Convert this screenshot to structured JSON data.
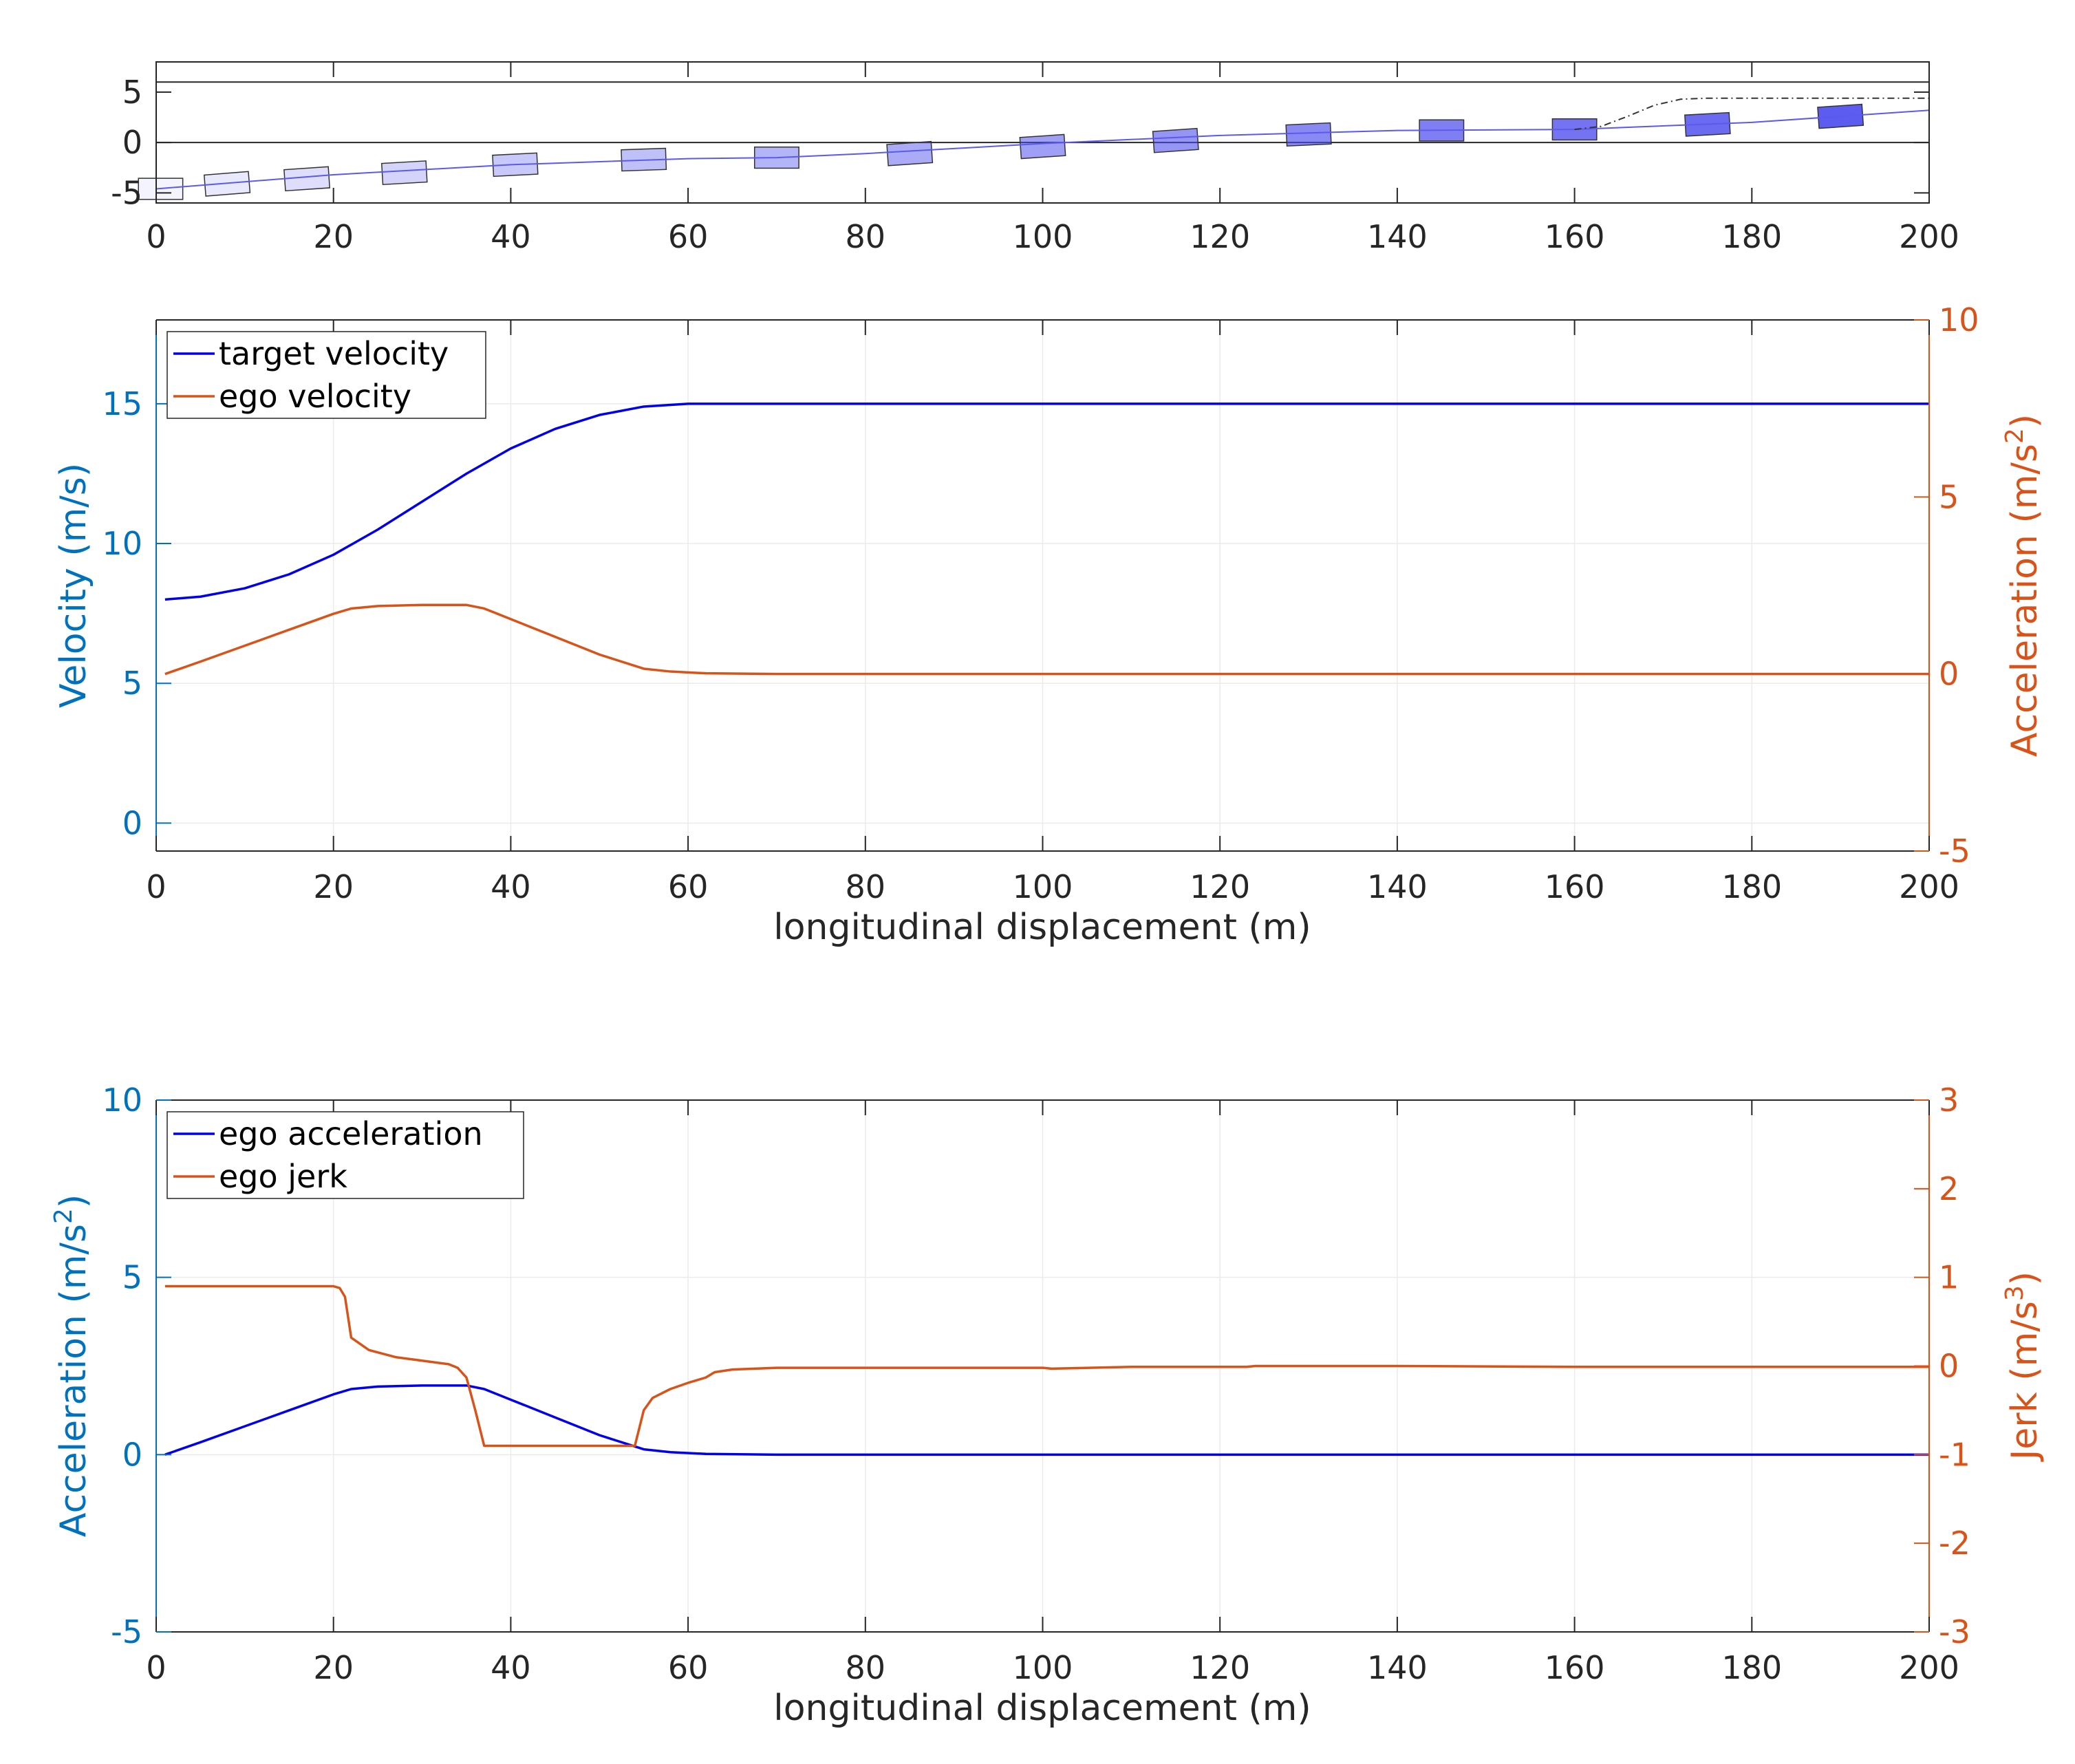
{
  "colors": {
    "blue_line": "#0000ee",
    "orange_line": "#d95319",
    "left_axis": "#0072bd",
    "right_axis": "#d95319",
    "axis_dark": "#262626",
    "grid": "#ebebeb",
    "vehicle_edge": "#333333",
    "vehicle_fill": "#4a4aee",
    "path_line": "#5a5aee"
  },
  "chart_data": [
    {
      "id": "trajectory",
      "type": "line",
      "title": "",
      "xlabel": "",
      "ylabel": "",
      "xlim": [
        0,
        200
      ],
      "ylim": [
        -6,
        8
      ],
      "xticks": [
        0,
        20,
        40,
        60,
        80,
        100,
        120,
        140,
        160,
        180,
        200
      ],
      "yticks": [
        -5,
        0,
        5
      ],
      "ytick_labels": [
        "-5",
        "0",
        "5"
      ],
      "lane_lines": [
        -6,
        0,
        6
      ],
      "path": {
        "x": [
          0,
          20,
          40,
          60,
          70,
          80,
          100,
          120,
          140,
          160,
          180,
          200
        ],
        "y": [
          -4.6,
          -3.2,
          -2.2,
          -1.6,
          -1.5,
          -1.1,
          -0.1,
          0.7,
          1.2,
          1.3,
          2.0,
          3.2
        ]
      },
      "branch_path": {
        "x": [
          160,
          163,
          166,
          169,
          172,
          175,
          200
        ],
        "y": [
          1.3,
          1.6,
          2.6,
          3.7,
          4.3,
          4.4,
          4.4
        ]
      },
      "vehicles": [
        {
          "x": 0.5,
          "y": -4.6,
          "heading": 0.0,
          "fill": 0.0
        },
        {
          "x": 8,
          "y": -4.1,
          "heading": 0.07,
          "fill": 0.07
        },
        {
          "x": 17,
          "y": -3.6,
          "heading": 0.06,
          "fill": 0.14
        },
        {
          "x": 28,
          "y": -3.0,
          "heading": 0.05,
          "fill": 0.21
        },
        {
          "x": 40.5,
          "y": -2.2,
          "heading": 0.045,
          "fill": 0.28
        },
        {
          "x": 55,
          "y": -1.7,
          "heading": 0.03,
          "fill": 0.35
        },
        {
          "x": 70,
          "y": -1.5,
          "heading": 0.0,
          "fill": 0.42
        },
        {
          "x": 85,
          "y": -1.1,
          "heading": 0.06,
          "fill": 0.49
        },
        {
          "x": 100,
          "y": -0.4,
          "heading": 0.06,
          "fill": 0.56
        },
        {
          "x": 115,
          "y": 0.2,
          "heading": 0.06,
          "fill": 0.63
        },
        {
          "x": 130,
          "y": 0.8,
          "heading": 0.04,
          "fill": 0.7
        },
        {
          "x": 145,
          "y": 1.2,
          "heading": 0.0,
          "fill": 0.77
        },
        {
          "x": 160,
          "y": 1.3,
          "heading": 0.0,
          "fill": 0.84
        },
        {
          "x": 175,
          "y": 1.8,
          "heading": 0.05,
          "fill": 0.91
        },
        {
          "x": 190,
          "y": 2.6,
          "heading": 0.06,
          "fill": 1.0
        }
      ]
    },
    {
      "id": "velocity",
      "type": "line",
      "title": "",
      "xlabel": "longitudinal displacement (m)",
      "ylabel_left": "Velocity (m/s)",
      "ylabel_right": "Acceleration (m/s",
      "ylabel_right_sup": "2",
      "ylabel_right_end": ")",
      "xlim": [
        0,
        200
      ],
      "ylim": [
        -1,
        18
      ],
      "ylim_right": [
        -5,
        10
      ],
      "xticks": [
        0,
        20,
        40,
        60,
        80,
        100,
        120,
        140,
        160,
        180,
        200
      ],
      "yticks": [
        0,
        5,
        10,
        15
      ],
      "yticks_right": [
        -5,
        0,
        5,
        10
      ],
      "legend_position": "top-left",
      "series": [
        {
          "name": "target velocity",
          "axis": "left",
          "color": "blue",
          "x": [
            1,
            5,
            10,
            15,
            20,
            25,
            30,
            35,
            40,
            45,
            50,
            55,
            60,
            70,
            100,
            200
          ],
          "y": [
            8.0,
            8.1,
            8.4,
            8.9,
            9.6,
            10.5,
            11.5,
            12.5,
            13.4,
            14.1,
            14.6,
            14.9,
            15.0,
            15.0,
            15.0,
            15.0
          ]
        },
        {
          "name": "ego velocity",
          "axis": "right",
          "color": "orange",
          "x": [
            1,
            5,
            10,
            15,
            20,
            22,
            25,
            30,
            35,
            37,
            40,
            45,
            50,
            55,
            58,
            62,
            70,
            100,
            200
          ],
          "y": [
            0.0,
            0.35,
            0.8,
            1.25,
            1.7,
            1.85,
            1.92,
            1.95,
            1.95,
            1.85,
            1.55,
            1.05,
            0.55,
            0.15,
            0.07,
            0.02,
            0.0,
            0.0,
            0.0
          ]
        }
      ]
    },
    {
      "id": "acceleration",
      "type": "line",
      "title": "",
      "xlabel": "longitudinal displacement (m)",
      "ylabel_left": "Acceleration (m/s",
      "ylabel_left_sup": "2",
      "ylabel_left_end": ")",
      "ylabel_right": "Jerk (m/s",
      "ylabel_right_sup": "3",
      "ylabel_right_end": ")",
      "xlim": [
        0,
        200
      ],
      "ylim": [
        -5,
        10
      ],
      "ylim_right": [
        -3,
        3
      ],
      "xticks": [
        0,
        20,
        40,
        60,
        80,
        100,
        120,
        140,
        160,
        180,
        200
      ],
      "yticks": [
        -5,
        0,
        5,
        10
      ],
      "yticks_right": [
        -3,
        -2,
        -1,
        0,
        1,
        2,
        3
      ],
      "legend_position": "top-left",
      "series": [
        {
          "name": "ego acceleration",
          "axis": "left",
          "color": "blue",
          "x": [
            1,
            5,
            10,
            15,
            20,
            22,
            25,
            30,
            35,
            37,
            40,
            45,
            50,
            55,
            58,
            62,
            70,
            100,
            200
          ],
          "y": [
            0.0,
            0.35,
            0.8,
            1.25,
            1.7,
            1.85,
            1.92,
            1.95,
            1.95,
            1.85,
            1.55,
            1.05,
            0.55,
            0.15,
            0.07,
            0.02,
            0.0,
            0.0,
            0.0
          ]
        },
        {
          "name": "ego jerk",
          "axis": "right",
          "color": "orange",
          "x": [
            1,
            20,
            20.7,
            21.3,
            22,
            24,
            27,
            30,
            33,
            34,
            35,
            36,
            37,
            54,
            55,
            56,
            58,
            60,
            62,
            63,
            65,
            70,
            100,
            101,
            110,
            123,
            124,
            140,
            160,
            161,
            200
          ],
          "y": [
            0.9,
            0.9,
            0.88,
            0.78,
            0.32,
            0.18,
            0.1,
            0.06,
            0.02,
            -0.02,
            -0.13,
            -0.5,
            -0.9,
            -0.9,
            -0.5,
            -0.36,
            -0.26,
            -0.19,
            -0.13,
            -0.07,
            -0.04,
            -0.02,
            -0.02,
            -0.03,
            -0.01,
            -0.01,
            0.0,
            0.0,
            -0.01,
            -0.01,
            -0.01
          ]
        }
      ]
    }
  ]
}
